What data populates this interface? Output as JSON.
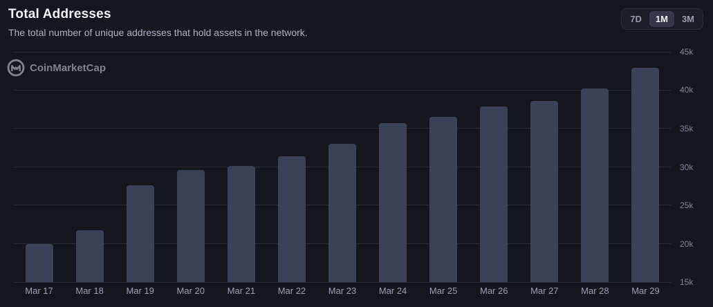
{
  "header": {
    "title": "Total Addresses",
    "subtitle": "The total number of unique addresses that hold assets in the network."
  },
  "range_buttons": [
    {
      "label": "7D",
      "active": false
    },
    {
      "label": "1M",
      "active": true
    },
    {
      "label": "3M",
      "active": false
    }
  ],
  "watermark": {
    "text": "CoinMarketCap",
    "icon": "coinmarketcap-logo"
  },
  "colors": {
    "background": "#16161f",
    "bar": "#3b4257",
    "grid": "#2a2a37",
    "axis_text": "#81869a",
    "title": "#f2f3f7",
    "subtitle": "#aeb3c2",
    "active_button_bg": "#37374b",
    "active_button_text": "#eef0f5",
    "button_text": "#989eaf"
  },
  "chart_data": {
    "type": "bar",
    "title": "Total Addresses",
    "xlabel": "",
    "ylabel": "",
    "categories": [
      "Mar 17",
      "Mar 18",
      "Mar 19",
      "Mar 20",
      "Mar 21",
      "Mar 22",
      "Mar 23",
      "Mar 24",
      "Mar 25",
      "Mar 26",
      "Mar 27",
      "Mar 28",
      "Mar 29"
    ],
    "values": [
      20000,
      21800,
      27600,
      29600,
      30100,
      31400,
      33000,
      35700,
      36500,
      37900,
      38600,
      40200,
      42900
    ],
    "ylim": [
      15000,
      45000
    ],
    "yticks": [
      15000,
      20000,
      25000,
      30000,
      35000,
      40000,
      45000
    ],
    "ytick_labels": [
      "15k",
      "20k",
      "25k",
      "30k",
      "35k",
      "40k",
      "45k"
    ],
    "y_axis_position": "right",
    "grid": true,
    "legend": false
  }
}
